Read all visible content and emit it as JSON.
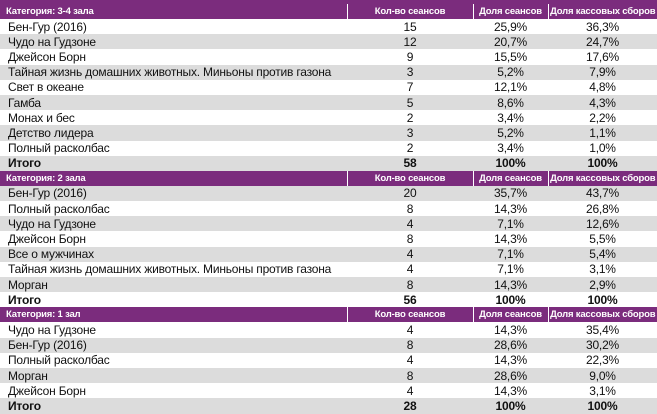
{
  "columns": [
    "Кол-во сеансов",
    "Доля сеансов",
    "Доля кассовых сборов"
  ],
  "colors": {
    "header": "#7b2c7d",
    "shaded_row": "#dcdcdc"
  },
  "sections": [
    {
      "category": "Категория: 3-4 зала",
      "rows": [
        [
          "Бен-Гур (2016)",
          "15",
          "25,9%",
          "36,3%"
        ],
        [
          "Чудо на Гудзоне",
          "12",
          "20,7%",
          "24,7%"
        ],
        [
          "Джейсон Борн",
          "9",
          "15,5%",
          "17,6%"
        ],
        [
          "Тайная жизнь домашних животных. Миньоны против газона",
          "3",
          "5,2%",
          "7,9%"
        ],
        [
          "Свет в океане",
          "7",
          "12,1%",
          "4,8%"
        ],
        [
          "Гамба",
          "5",
          "8,6%",
          "4,3%"
        ],
        [
          "Монах и бес",
          "2",
          "3,4%",
          "2,2%"
        ],
        [
          "Детство лидера",
          "3",
          "5,2%",
          "1,1%"
        ],
        [
          "Полный расколбас",
          "2",
          "3,4%",
          "1,0%"
        ]
      ],
      "total": [
        "Итого",
        "58",
        "100%",
        "100%"
      ]
    },
    {
      "category": "Категория: 2 зала",
      "rows": [
        [
          "Бен-Гур (2016)",
          "20",
          "35,7%",
          "43,7%"
        ],
        [
          "Полный расколбас",
          "8",
          "14,3%",
          "26,8%"
        ],
        [
          "Чудо на Гудзоне",
          "4",
          "7,1%",
          "12,6%"
        ],
        [
          "Джейсон Борн",
          "8",
          "14,3%",
          "5,5%"
        ],
        [
          "Все о мужчинах",
          "4",
          "7,1%",
          "5,4%"
        ],
        [
          "Тайная жизнь домашних животных. Миньоны против газона",
          "4",
          "7,1%",
          "3,1%"
        ],
        [
          "Морган",
          "8",
          "14,3%",
          "2,9%"
        ]
      ],
      "total": [
        "Итого",
        "56",
        "100%",
        "100%"
      ]
    },
    {
      "category": "Категория: 1 зал",
      "rows": [
        [
          "Чудо на Гудзоне",
          "4",
          "14,3%",
          "35,4%"
        ],
        [
          "Бен-Гур (2016)",
          "8",
          "28,6%",
          "30,2%"
        ],
        [
          "Полный расколбас",
          "4",
          "14,3%",
          "22,3%"
        ],
        [
          "Морган",
          "8",
          "28,6%",
          "9,0%"
        ],
        [
          "Джейсон Борн",
          "4",
          "14,3%",
          "3,1%"
        ]
      ],
      "total": [
        "Итого",
        "28",
        "100%",
        "100%"
      ]
    }
  ]
}
